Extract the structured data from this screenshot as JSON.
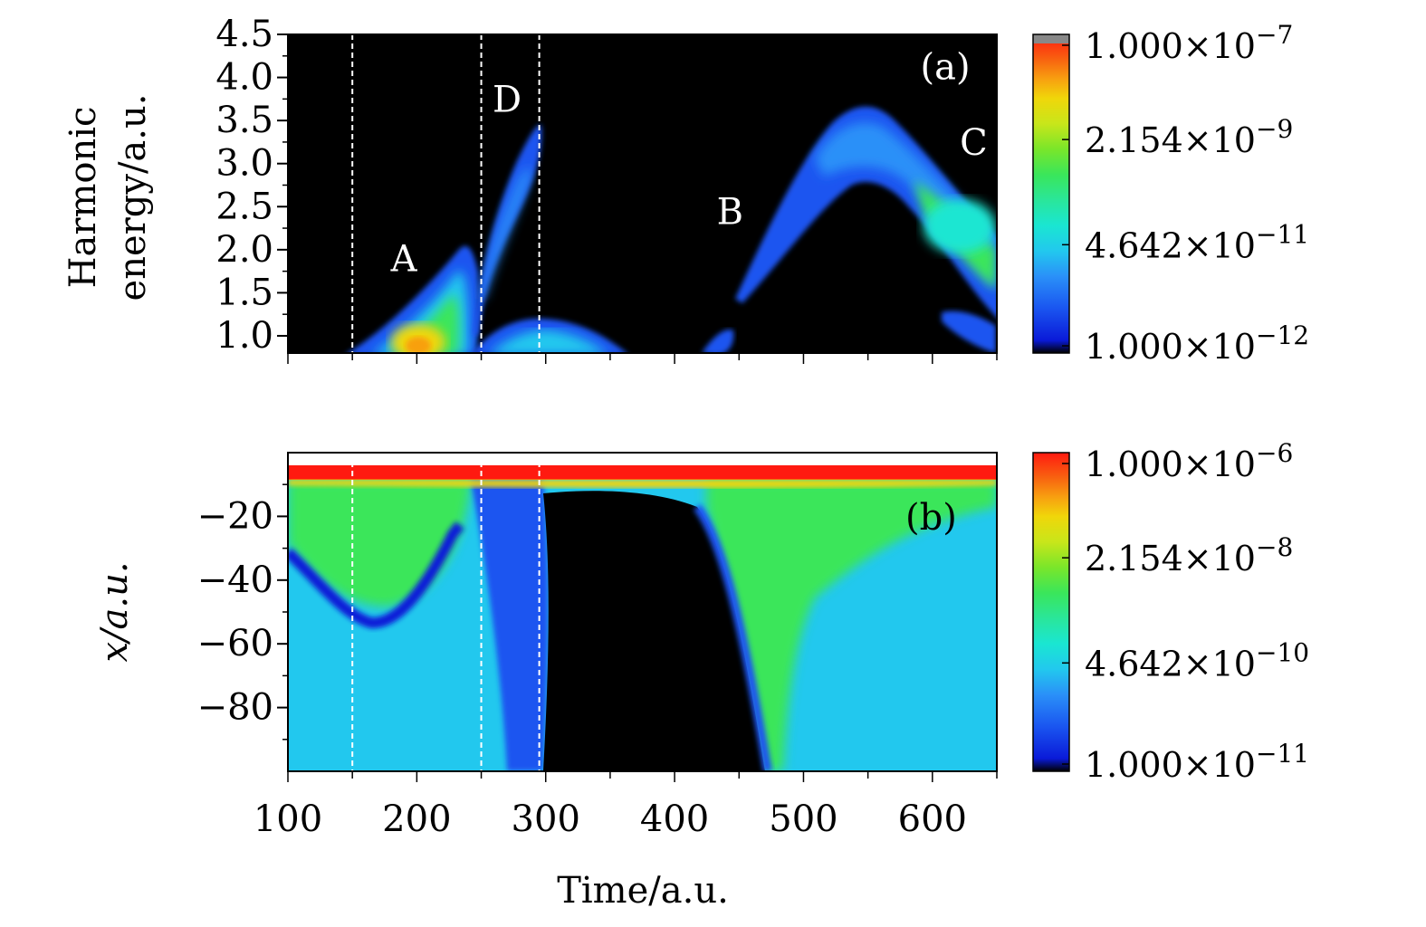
{
  "chart_data": [
    {
      "type": "heatmap",
      "panel_label": "(a)",
      "xlim": [
        100,
        650
      ],
      "ylim": [
        0.8,
        4.5
      ],
      "ylabel_lines": [
        "Harmonic",
        "energy/a.u."
      ],
      "yticks": [
        {
          "value": 1.0,
          "label": "1.0"
        },
        {
          "value": 1.5,
          "label": "1.5"
        },
        {
          "value": 2.0,
          "label": "2.0"
        },
        {
          "value": 2.5,
          "label": "2.5"
        },
        {
          "value": 3.0,
          "label": "3.0"
        },
        {
          "value": 3.5,
          "label": "3.5"
        },
        {
          "value": 4.0,
          "label": "4.0"
        },
        {
          "value": 4.5,
          "label": "4.5"
        }
      ],
      "vlines_time": [
        150,
        250,
        295
      ],
      "annotations": [
        {
          "text": "A",
          "x": 190,
          "y": 1.75
        },
        {
          "text": "D",
          "x": 270,
          "y": 3.6
        },
        {
          "text": "B",
          "x": 443,
          "y": 2.3
        },
        {
          "text": "C",
          "x": 632,
          "y": 3.1
        },
        {
          "text": "(a)",
          "x": 610,
          "y": 3.98
        }
      ],
      "colorbar": {
        "scale": "log",
        "range": [
          1e-12,
          1e-07
        ],
        "tick_labels": [
          {
            "mantissa": "1.000",
            "exponent": "−7"
          },
          {
            "mantissa": "2.154",
            "exponent": "−9"
          },
          {
            "mantissa": "4.642",
            "exponent": "−11"
          },
          {
            "mantissa": "1.000",
            "exponent": "−12"
          }
        ]
      },
      "background_color": "#000000"
    },
    {
      "type": "heatmap",
      "panel_label": "(b)",
      "xlim": [
        100,
        650
      ],
      "ylim": [
        -100,
        0
      ],
      "xlabel": "Time/a.u.",
      "ylabel": "x/a.u.",
      "xticks": [
        {
          "value": 100,
          "label": "100"
        },
        {
          "value": 200,
          "label": "200"
        },
        {
          "value": 300,
          "label": "300"
        },
        {
          "value": 400,
          "label": "400"
        },
        {
          "value": 500,
          "label": "500"
        },
        {
          "value": 600,
          "label": "600"
        }
      ],
      "yticks": [
        {
          "value": -20,
          "label": "−20"
        },
        {
          "value": -40,
          "label": "−40"
        },
        {
          "value": -60,
          "label": "−60"
        },
        {
          "value": -80,
          "label": "−80"
        }
      ],
      "vlines_time": [
        150,
        250,
        295
      ],
      "colorbar": {
        "scale": "log",
        "range": [
          1e-11,
          1e-06
        ],
        "tick_labels": [
          {
            "mantissa": "1.000",
            "exponent": "−6"
          },
          {
            "mantissa": "2.154",
            "exponent": "−8"
          },
          {
            "mantissa": "4.642",
            "exponent": "−10"
          },
          {
            "mantissa": "1.000",
            "exponent": "−11"
          }
        ]
      }
    }
  ],
  "colormap": [
    "#000000",
    "#0a1ad8",
    "#1a55f0",
    "#2a90f8",
    "#22c8ee",
    "#1ae6d2",
    "#2ae69a",
    "#3ae65a",
    "#7ae62a",
    "#c8e61a",
    "#f0d60a",
    "#f8a010",
    "#f86410",
    "#f02a10",
    "#ff1a10"
  ]
}
